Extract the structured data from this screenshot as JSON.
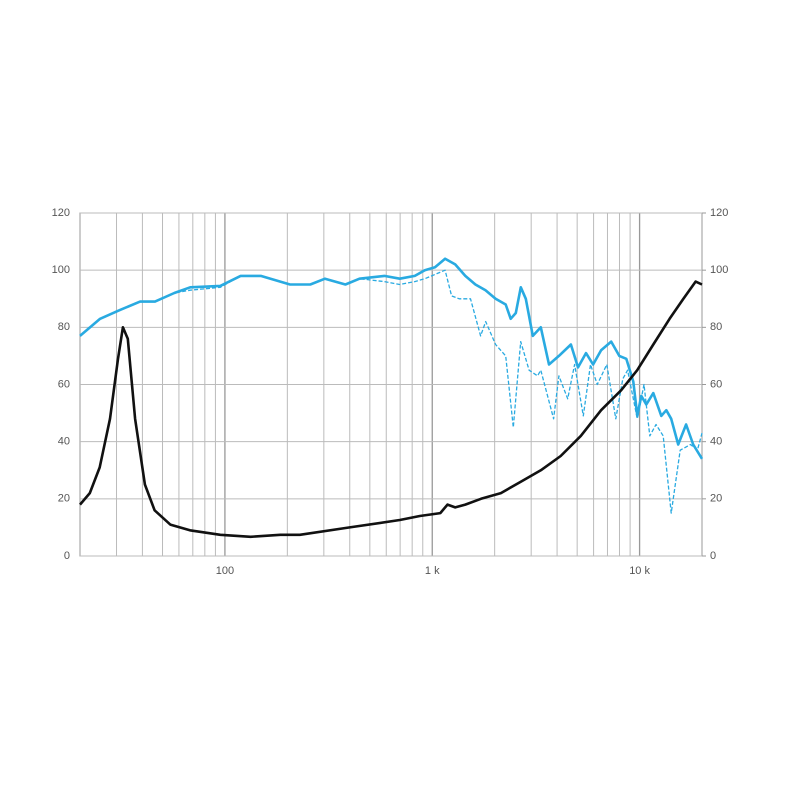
{
  "chart_data": {
    "type": "line",
    "xscale": "log",
    "grid": true,
    "xlim": [
      20,
      20000
    ],
    "ylim": [
      0,
      120
    ],
    "y2lim": [
      0,
      120
    ],
    "xticks": [
      100,
      {
        "value": 1000,
        "label": "1 k"
      },
      {
        "value": 10000,
        "label": "10 k"
      }
    ],
    "xgrid": [
      30,
      40,
      50,
      60,
      70,
      80,
      90,
      200,
      300,
      400,
      500,
      600,
      700,
      800,
      900,
      2000,
      3000,
      4000,
      5000,
      6000,
      7000,
      8000,
      9000
    ],
    "yticks": [
      0,
      20,
      40,
      60,
      80,
      100,
      120
    ],
    "y2ticks": [
      0,
      20,
      40,
      60,
      80,
      100,
      120
    ],
    "series": [
      {
        "color": "#29aae1",
        "dash": true,
        "x": [
          20,
          25,
          31,
          39,
          46,
          57,
          68,
          95,
          119,
          149,
          206,
          258,
          304,
          381,
          446,
          588,
          697,
          824,
          921,
          1153,
          1240,
          1350,
          1530,
          1710,
          1810,
          2020,
          2260,
          2460,
          2670,
          2930,
          3220,
          3340,
          3850,
          4080,
          4500,
          4860,
          5350,
          5800,
          6250,
          6950,
          7680,
          8300,
          8750,
          9750,
          10500,
          11200,
          12000,
          13000,
          14200,
          15700,
          17600,
          19000,
          20000
        ],
        "values": [
          77,
          83,
          86,
          89,
          89,
          92,
          93,
          94,
          98,
          98,
          95,
          95,
          97,
          95,
          97,
          96,
          95,
          96,
          97,
          100,
          91,
          90,
          90,
          77,
          82,
          74,
          70,
          45,
          75,
          65,
          63,
          65,
          48,
          63,
          55,
          67,
          49,
          67,
          60,
          67,
          48,
          62,
          65,
          48,
          60,
          42,
          46,
          42,
          15,
          37,
          39,
          37,
          43
        ]
      },
      {
        "color": "#29aae1",
        "dash": false,
        "x": [
          20,
          25,
          31,
          39,
          46,
          57,
          68,
          95,
          119,
          149,
          206,
          258,
          304,
          381,
          446,
          588,
          697,
          824,
          921,
          1031,
          1153,
          1290,
          1443,
          1614,
          1806,
          2020,
          2260,
          2390,
          2528,
          2673,
          2827,
          3054,
          3340,
          3655,
          4083,
          4665,
          5048,
          5516,
          5966,
          6523,
          7300,
          7980,
          8625,
          9326,
          9750,
          10190,
          10770,
          11640,
          12730,
          13450,
          14200,
          15350,
          16770,
          18130,
          20000
        ],
        "values": [
          77,
          83,
          86,
          89,
          89,
          92,
          94,
          94.5,
          98,
          98,
          95,
          95,
          97,
          95,
          97,
          98,
          97,
          98,
          100,
          101,
          104,
          102,
          98,
          95,
          93,
          90,
          88,
          83,
          85,
          94,
          90,
          77,
          80,
          67,
          70,
          74,
          66,
          71,
          67,
          72,
          75,
          70,
          69,
          61,
          49,
          56,
          53,
          57,
          49,
          51,
          48,
          39,
          46,
          39,
          34
        ]
      },
      {
        "color": "#111111",
        "dash": false,
        "axis": "y2",
        "x": [
          20,
          22.3,
          24.9,
          27.9,
          30.5,
          32.2,
          34,
          36.9,
          41.1,
          45.8,
          54.5,
          67.8,
          95,
          133,
          185,
          230,
          400,
          697,
          871,
          1093,
          1185,
          1290,
          1443,
          1718,
          2144,
          2673,
          3340,
          4164,
          5205,
          6523,
          8150,
          9742,
          11640,
          13960,
          16260,
          18630,
          20000
        ],
        "values": [
          18,
          22,
          31,
          48,
          69,
          80,
          76,
          48,
          25,
          16,
          11,
          9,
          7.4,
          6.7,
          7.4,
          7.4,
          10,
          12.6,
          14,
          15,
          18,
          17,
          18,
          20,
          22,
          26,
          30,
          35,
          42,
          51,
          58,
          65,
          74,
          83,
          90,
          96,
          95
        ]
      }
    ]
  }
}
